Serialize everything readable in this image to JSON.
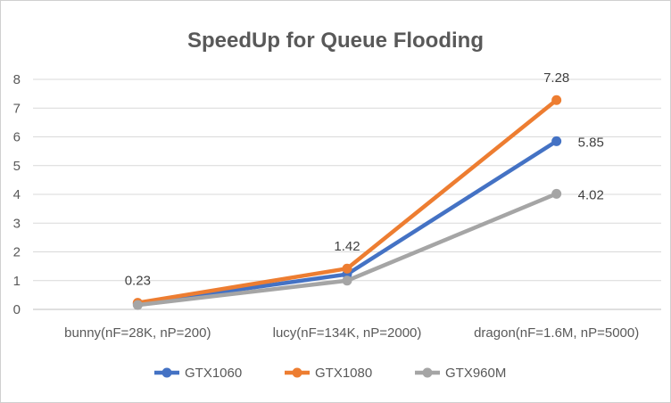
{
  "chart_data": {
    "type": "line",
    "title": "SpeedUp for Queue Flooding",
    "xlabel": "",
    "ylabel": "",
    "categories": [
      "bunny(nF=28K, nP=200)",
      "lucy(nF=134K, nP=2000)",
      "dragon(nF=1.6M, nP=5000)"
    ],
    "ylim": [
      0,
      8
    ],
    "yticks": [
      0,
      1,
      2,
      3,
      4,
      5,
      6,
      7,
      8
    ],
    "grid": "horizontal",
    "legend_position": "bottom",
    "series": [
      {
        "name": "GTX1060",
        "color": "#4472c4",
        "values": [
          0.2,
          1.22,
          5.85
        ]
      },
      {
        "name": "GTX1080",
        "color": "#ed7d31",
        "values": [
          0.23,
          1.42,
          7.28
        ]
      },
      {
        "name": "GTX960M",
        "color": "#a5a5a5",
        "values": [
          0.15,
          1.0,
          4.02
        ]
      }
    ],
    "data_labels": [
      {
        "series": "GTX1080",
        "index": 0,
        "text": "0.23"
      },
      {
        "series": "GTX1080",
        "index": 1,
        "text": "1.42"
      },
      {
        "series": "GTX1080",
        "index": 2,
        "text": "7.28"
      },
      {
        "series": "GTX1060",
        "index": 2,
        "text": "5.85"
      },
      {
        "series": "GTX960M",
        "index": 2,
        "text": "4.02"
      }
    ]
  }
}
